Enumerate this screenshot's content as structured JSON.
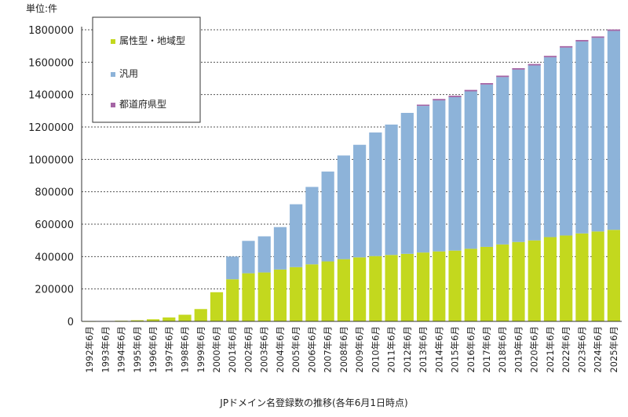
{
  "chart_data": {
    "type": "bar",
    "stacked": true,
    "unit_label": "単位:件",
    "xlabel": "JPドメイン名登録数の推移(各年6月1日時点)",
    "ylabel": "",
    "ylim": [
      0,
      1800000
    ],
    "yticks": [
      "1800000",
      "1600000",
      "1400000",
      "1200000",
      "1000000",
      "800000",
      "600000",
      "400000",
      "200000",
      "0"
    ],
    "ytick_values": [
      1800000,
      1600000,
      1400000,
      1200000,
      1000000,
      800000,
      600000,
      400000,
      200000,
      0
    ],
    "grid": "dotted horizontal",
    "legend_position": "top-left",
    "categories": [
      "1992年6月",
      "1993年6月",
      "1994年6月",
      "1995年6月",
      "1996年6月",
      "1997年6月",
      "1998年6月",
      "1999年6月",
      "2000年6月",
      "2001年6月",
      "2002年6月",
      "2003年6月",
      "2004年6月",
      "2005年6月",
      "2006年6月",
      "2007年6月",
      "2008年6月",
      "2009年6月",
      "2010年6月",
      "2011年6月",
      "2012年6月",
      "2013年6月",
      "2014年6月",
      "2015年6月",
      "2016年6月",
      "2017年6月",
      "2018年6月",
      "2019年6月",
      "2020年6月",
      "2021年6月",
      "2022年6月",
      "2023年6月",
      "2024年6月",
      "2025年6月"
    ],
    "series": [
      {
        "name": "属性型・地域型",
        "color": "#c3d81e",
        "values": [
          1000,
          2000,
          4000,
          7000,
          13000,
          24000,
          41000,
          76000,
          180000,
          260000,
          297000,
          302000,
          320000,
          335000,
          352000,
          370000,
          384000,
          395000,
          403000,
          410000,
          417000,
          425000,
          432000,
          437000,
          448000,
          460000,
          475000,
          490000,
          500000,
          520000,
          530000,
          543000,
          555000,
          565000
        ]
      },
      {
        "name": "汎用",
        "color": "#8db3d9",
        "values": [
          0,
          0,
          0,
          0,
          0,
          0,
          0,
          0,
          0,
          140000,
          200000,
          223000,
          262000,
          388000,
          478000,
          555000,
          640000,
          695000,
          763000,
          805000,
          870000,
          905000,
          932000,
          947000,
          972000,
          1002000,
          1033000,
          1064000,
          1080000,
          1110000,
          1160000,
          1185000,
          1195000,
          1228000
        ]
      },
      {
        "name": "都道府県型",
        "color": "#a565a5",
        "values": [
          0,
          0,
          0,
          0,
          0,
          0,
          0,
          0,
          0,
          0,
          0,
          0,
          0,
          0,
          0,
          0,
          0,
          0,
          0,
          0,
          0,
          8000,
          9000,
          9000,
          9000,
          9000,
          9000,
          9000,
          9000,
          9000,
          9000,
          9000,
          9000,
          9000
        ]
      }
    ]
  }
}
